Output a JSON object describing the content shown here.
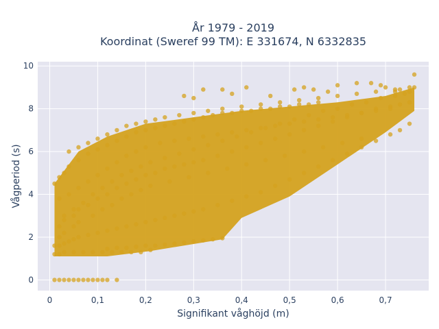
{
  "chart_data": {
    "type": "scatter",
    "title_line1": "År 1979 - 2019",
    "title_line2": "Koordinat (Sweref 99 TM): E 331674, N 6332835",
    "xlabel": "Signifikant våghöjd (m)",
    "ylabel": "Vågperiod (s)",
    "xlim": [
      -0.025,
      0.79
    ],
    "ylim": [
      -0.5,
      10.2
    ],
    "x_ticks": [
      0,
      0.1,
      0.2,
      0.3,
      0.4,
      0.5,
      0.6,
      0.7
    ],
    "x_tick_labels": [
      "0",
      "0,1",
      "0,2",
      "0,3",
      "0,4",
      "0,5",
      "0,6",
      "0,7"
    ],
    "y_ticks": [
      0,
      2,
      4,
      6,
      8,
      10
    ],
    "y_tick_labels": [
      "0",
      "2",
      "4",
      "6",
      "8",
      "10"
    ],
    "grid": true,
    "legend": "none",
    "marker_color": "#d4a21f",
    "plot_bgcolor": "#e5e5f0",
    "series": [
      {
        "x": [
          0.01,
          0.02,
          0.03,
          0.04,
          0.05,
          0.06,
          0.07,
          0.08,
          0.09,
          0.1,
          0.11,
          0.12,
          0.14,
          0.01,
          0.02,
          0.03,
          0.05,
          0.07,
          0.09,
          0.11,
          0.13,
          0.15,
          0.17,
          0.19,
          0.21,
          0.12,
          0.14,
          0.16,
          0.18,
          0.2,
          0.22,
          0.24,
          0.26,
          0.28,
          0.3,
          0.32,
          0.34,
          0.36,
          0.01,
          0.02,
          0.03,
          0.04,
          0.05,
          0.06,
          0.08,
          0.1,
          0.12,
          0.14,
          0.16,
          0.18,
          0.2,
          0.22,
          0.24,
          0.26,
          0.28,
          0.3,
          0.32,
          0.35,
          0.38,
          0.41,
          0.44,
          0.47,
          0.5,
          0.53,
          0.56,
          0.59,
          0.62,
          0.65,
          0.68,
          0.71,
          0.73,
          0.75,
          0.02,
          0.03,
          0.05,
          0.06,
          0.08,
          0.1,
          0.12,
          0.14,
          0.16,
          0.18,
          0.2,
          0.22,
          0.24,
          0.26,
          0.28,
          0.3,
          0.32,
          0.35,
          0.38,
          0.41,
          0.44,
          0.47,
          0.5,
          0.53,
          0.56,
          0.59,
          0.62,
          0.65,
          0.68,
          0.71,
          0.73,
          0.75,
          0.02,
          0.04,
          0.06,
          0.08,
          0.1,
          0.12,
          0.14,
          0.16,
          0.18,
          0.2,
          0.23,
          0.26,
          0.29,
          0.32,
          0.35,
          0.38,
          0.41,
          0.44,
          0.47,
          0.5,
          0.53,
          0.56,
          0.59,
          0.62,
          0.65,
          0.68,
          0.71,
          0.03,
          0.05,
          0.07,
          0.09,
          0.11,
          0.13,
          0.15,
          0.17,
          0.19,
          0.21,
          0.24,
          0.27,
          0.3,
          0.33,
          0.36,
          0.39,
          0.42,
          0.45,
          0.48,
          0.51,
          0.54,
          0.57,
          0.6,
          0.63,
          0.66,
          0.69,
          0.72,
          0.74,
          0.01,
          0.02,
          0.03,
          0.04,
          0.06,
          0.08,
          0.1,
          0.12,
          0.14,
          0.16,
          0.18,
          0.2,
          0.22,
          0.24,
          0.26,
          0.28,
          0.3,
          0.32,
          0.34,
          0.36,
          0.38,
          0.4,
          0.42,
          0.44,
          0.46,
          0.48,
          0.5,
          0.52,
          0.54,
          0.56,
          0.04,
          0.06,
          0.08,
          0.1,
          0.12,
          0.14,
          0.16,
          0.18,
          0.2,
          0.22,
          0.24,
          0.27,
          0.3,
          0.33,
          0.36,
          0.4,
          0.44,
          0.48,
          0.52,
          0.56,
          0.6,
          0.64,
          0.68,
          0.72,
          0.75,
          0.76,
          0.32,
          0.36,
          0.41,
          0.51,
          0.53,
          0.6,
          0.64,
          0.67,
          0.69,
          0.7,
          0.72,
          0.73,
          0.75,
          0.76,
          0.28,
          0.3,
          0.38,
          0.46,
          0.55,
          0.58,
          0.02,
          0.03,
          0.05,
          0.06,
          0.09,
          0.11,
          0.13,
          0.15,
          0.17,
          0.19,
          0.21,
          0.25,
          0.29,
          0.33,
          0.37,
          0.41,
          0.45,
          0.49,
          0.53,
          0.57,
          0.61,
          0.65
        ],
        "y": [
          0,
          0,
          0,
          0,
          0,
          0,
          0,
          0,
          0,
          0,
          0,
          0,
          0,
          1.2,
          1.2,
          1.3,
          1.3,
          1.3,
          1.3,
          1.3,
          1.3,
          1.3,
          1.3,
          1.3,
          1.4,
          1.45,
          1.5,
          1.5,
          1.55,
          1.6,
          1.6,
          1.65,
          1.7,
          1.75,
          1.8,
          1.85,
          1.9,
          1.95,
          1.6,
          1.6,
          1.7,
          1.8,
          1.9,
          2.0,
          2.1,
          2.2,
          2.3,
          2.4,
          2.5,
          2.6,
          2.7,
          2.8,
          2.9,
          3.0,
          3.1,
          3.2,
          3.3,
          3.5,
          3.7,
          3.9,
          4.1,
          4.4,
          4.7,
          5.0,
          5.3,
          5.6,
          5.9,
          6.2,
          6.5,
          6.8,
          7.0,
          7.3,
          2.5,
          2.8,
          3.0,
          3.3,
          3.5,
          3.8,
          4.0,
          4.3,
          4.5,
          4.7,
          4.9,
          5.0,
          5.2,
          5.3,
          5.4,
          5.5,
          5.6,
          5.8,
          6.0,
          6.2,
          6.4,
          6.6,
          6.8,
          7.0,
          7.2,
          7.4,
          7.6,
          7.8,
          8.0,
          8.1,
          8.2,
          8.3,
          3.8,
          4.0,
          4.3,
          4.6,
          4.9,
          5.2,
          5.5,
          5.8,
          6.0,
          6.2,
          6.4,
          6.5,
          6.6,
          6.7,
          6.8,
          6.9,
          7.0,
          7.1,
          7.2,
          7.3,
          7.4,
          7.5,
          7.6,
          7.7,
          7.8,
          7.9,
          8.0,
          3.0,
          3.3,
          3.6,
          4.0,
          4.3,
          4.6,
          4.9,
          5.1,
          5.3,
          5.5,
          5.7,
          5.9,
          6.1,
          6.3,
          6.5,
          6.7,
          6.9,
          7.1,
          7.3,
          7.5,
          7.7,
          7.9,
          8.0,
          8.2,
          8.3,
          8.5,
          8.6,
          8.7,
          4.5,
          4.8,
          5.0,
          5.3,
          5.6,
          5.9,
          6.1,
          6.3,
          6.5,
          6.7,
          6.9,
          7.0,
          7.1,
          7.2,
          7.3,
          7.4,
          7.5,
          7.6,
          7.7,
          7.8,
          7.8,
          7.9,
          7.9,
          8.0,
          8.0,
          8.1,
          8.1,
          8.2,
          8.2,
          8.3,
          6.0,
          6.2,
          6.4,
          6.6,
          6.8,
          7.0,
          7.2,
          7.3,
          7.4,
          7.5,
          7.6,
          7.7,
          7.8,
          7.9,
          8.0,
          8.1,
          8.2,
          8.3,
          8.4,
          8.5,
          8.6,
          8.7,
          8.8,
          8.9,
          9.0,
          9.6,
          8.9,
          8.9,
          9.0,
          8.9,
          9.0,
          9.1,
          9.2,
          9.2,
          9.1,
          9.0,
          8.8,
          8.9,
          8.8,
          9.0,
          8.6,
          8.5,
          8.7,
          8.6,
          8.9,
          8.8,
          2.0,
          2.2,
          2.5,
          2.7,
          3.0,
          3.3,
          3.5,
          3.8,
          4.0,
          4.2,
          4.4,
          4.6,
          4.8,
          5.0,
          5.2,
          5.4,
          5.6,
          5.8,
          6.0,
          6.2,
          6.4,
          6.6
        ]
      }
    ]
  }
}
